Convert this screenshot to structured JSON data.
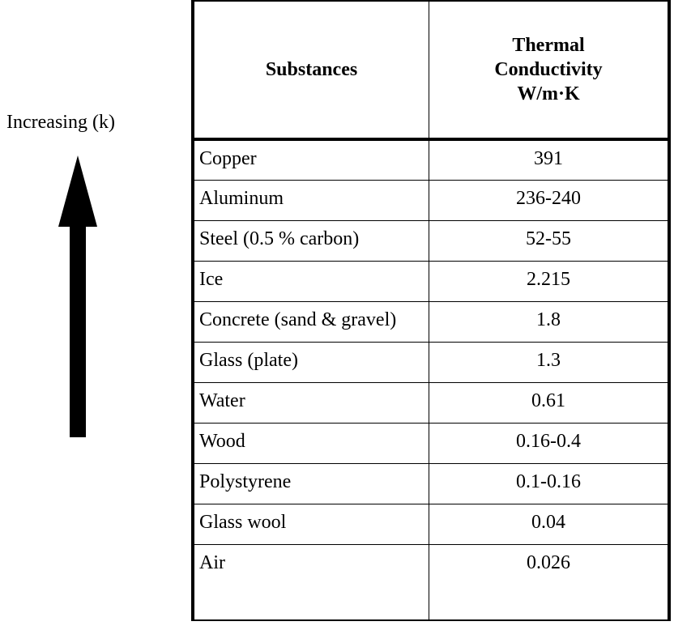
{
  "label": "Increasing (k)",
  "table": {
    "header": [
      "Substances",
      [
        "Thermal",
        "Conductivity",
        "W/m·K"
      ]
    ],
    "rows": [
      [
        "Copper",
        "391"
      ],
      [
        "Aluminum",
        "236-240"
      ],
      [
        "Steel (0.5 % carbon)",
        "52-55"
      ],
      [
        "Ice",
        "2.215"
      ],
      [
        "Concrete (sand & gravel)",
        "1.8"
      ],
      [
        "Glass (plate)",
        "1.3"
      ],
      [
        "Water",
        "0.61"
      ],
      [
        "Wood",
        "0.16-0.4"
      ],
      [
        "Polystyrene",
        "0.1-0.16"
      ],
      [
        "Glass wool",
        "0.04"
      ],
      [
        "Air",
        "0.026"
      ]
    ]
  }
}
